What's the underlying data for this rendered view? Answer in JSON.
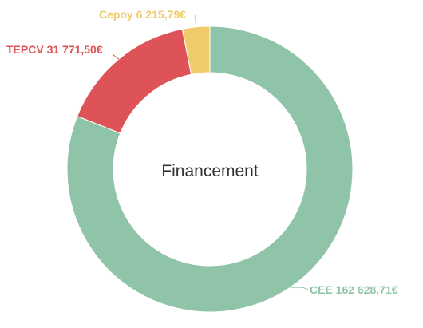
{
  "chart_data": {
    "type": "pie",
    "variant": "donut",
    "center_title": "Financement",
    "slices": [
      {
        "name": "CEE",
        "value": 162628.71,
        "label": "CEE 162 628,71€",
        "color": "#8fc4a8"
      },
      {
        "name": "TEPCV",
        "value": 31771.5,
        "label": "TEPCV 31 771,50€",
        "color": "#dd5358"
      },
      {
        "name": "Cepoy",
        "value": 6215.79,
        "label": "Cepoy 6 215,79€",
        "color": "#f0cb69"
      }
    ],
    "legend": "none",
    "data_labels": "outside-with-connectors"
  }
}
